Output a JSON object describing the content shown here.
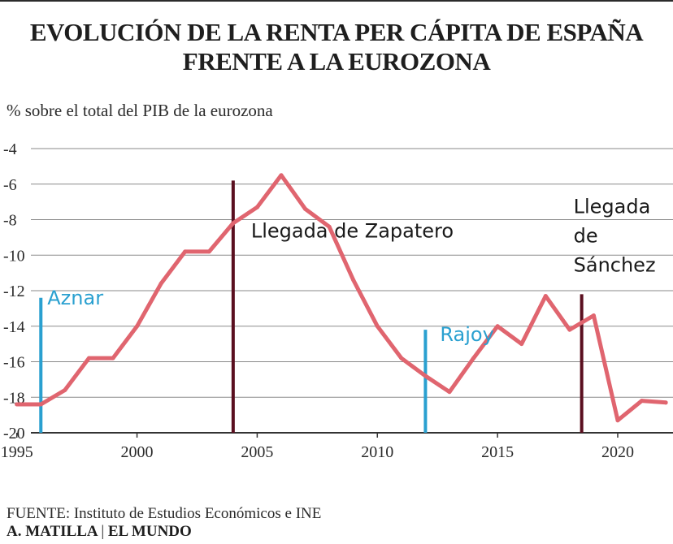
{
  "title_line1": "EVOLUCIÓN DE LA RENTA PER CÁPITA DE ESPAÑA",
  "title_line2": "FRENTE A LA EUROZONA",
  "units_label": "% sobre el total del PIB de la eurozona",
  "source": {
    "label": "FUENTE:",
    "text": "Instituto de Estudios Económicos e INE"
  },
  "byline": {
    "author": "A. MATILLA",
    "separator": "|",
    "outlet": "EL MUNDO"
  },
  "colors": {
    "line": "#e0656f",
    "grid": "#8a8a8a",
    "axis": "#333333",
    "event_dark": "#5a0f1f",
    "event_blue": "#2aa0d0",
    "text": "#2a2a2a"
  },
  "chart_data": {
    "type": "line",
    "title": "EVOLUCIÓN DE LA RENTA PER CÁPITA DE ESPAÑA FRENTE A LA EUROZONA",
    "ylabel": "% sobre el total del PIB de la eurozona",
    "xlabel": "",
    "xlim": [
      1994.3,
      2022.3
    ],
    "ylim": [
      -20,
      -4
    ],
    "xticks": [
      1995,
      2000,
      2005,
      2010,
      2015,
      2020
    ],
    "yticks": [
      -4,
      -6,
      -8,
      -10,
      -12,
      -14,
      -16,
      -18,
      -20
    ],
    "grid": "horizontal",
    "series": [
      {
        "x": [
          1995,
          1996,
          1997,
          1998,
          1999,
          2000,
          2001,
          2002,
          2003,
          2004,
          2005,
          2006,
          2007,
          2008,
          2009,
          2010,
          2011,
          2012,
          2013,
          2014,
          2015,
          2016,
          2017,
          2018,
          2019,
          2020,
          2021,
          2022
        ],
        "values": [
          -18.4,
          -18.4,
          -17.6,
          -15.8,
          -15.8,
          -14.0,
          -11.6,
          -9.8,
          -9.8,
          -8.2,
          -7.3,
          -5.5,
          -7.4,
          -8.4,
          -11.4,
          -14.0,
          -15.8,
          -16.8,
          -17.7,
          -15.8,
          -14.0,
          -15.0,
          -12.3,
          -14.2,
          -13.4,
          -19.3,
          -18.2,
          -18.3
        ]
      }
    ],
    "events": [
      {
        "x": 1996.0,
        "label": "Aznar",
        "color": "blue",
        "y_from": -20.0,
        "y_to": -12.4
      },
      {
        "x": 2004.0,
        "label": "Llegada de Zapatero",
        "color": "dark",
        "y_from": -20.0,
        "y_to": -5.8
      },
      {
        "x": 2012.0,
        "label": "Rajoy",
        "color": "blue",
        "y_from": -20.0,
        "y_to": -14.2
      },
      {
        "x": 2018.5,
        "label_lines": [
          "Llegada",
          "de",
          "Sánchez"
        ],
        "color": "dark",
        "y_from": -20.0,
        "y_to": -12.2
      }
    ]
  }
}
